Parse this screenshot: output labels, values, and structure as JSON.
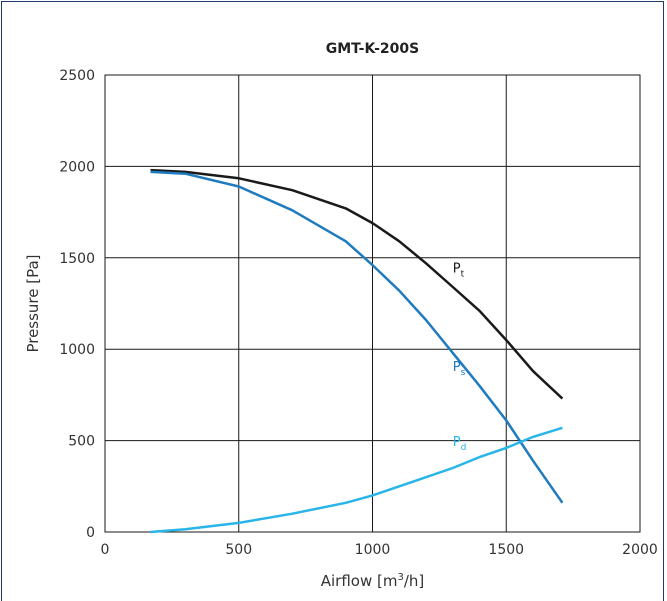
{
  "chart_data": {
    "type": "line",
    "title": "GMT-K-200S",
    "xlabel": "Airflow [m3/h]",
    "xlabel_parts": {
      "main": "Airflow [m",
      "sup": "3",
      "tail": "/h]"
    },
    "ylabel": "Pressure [Pa]",
    "xlim": [
      0,
      2000
    ],
    "ylim": [
      0,
      2500
    ],
    "xticks": [
      0,
      500,
      1000,
      1500,
      2000
    ],
    "yticks": [
      0,
      500,
      1000,
      1500,
      2000,
      2500
    ],
    "xtick_labels": [
      "0",
      "500",
      "1000",
      "1500",
      "2000"
    ],
    "ytick_labels": [
      "0",
      "500",
      "1000",
      "1500",
      "2000",
      "2500"
    ],
    "grid": true,
    "series": [
      {
        "name": "Pt",
        "label_main": "P",
        "label_sub": "t",
        "color": "#1a1a1a",
        "label_at": [
          1300,
          1420
        ],
        "points": [
          [
            170,
            1980
          ],
          [
            300,
            1970
          ],
          [
            500,
            1935
          ],
          [
            700,
            1870
          ],
          [
            900,
            1770
          ],
          [
            1000,
            1690
          ],
          [
            1100,
            1590
          ],
          [
            1200,
            1470
          ],
          [
            1300,
            1340
          ],
          [
            1400,
            1210
          ],
          [
            1500,
            1050
          ],
          [
            1600,
            880
          ],
          [
            1710,
            730
          ]
        ]
      },
      {
        "name": "Ps",
        "label_main": "P",
        "label_sub": "s",
        "color": "#1f7bbf",
        "label_at": [
          1300,
          880
        ],
        "points": [
          [
            170,
            1970
          ],
          [
            300,
            1960
          ],
          [
            500,
            1890
          ],
          [
            700,
            1760
          ],
          [
            900,
            1590
          ],
          [
            1000,
            1460
          ],
          [
            1100,
            1320
          ],
          [
            1200,
            1160
          ],
          [
            1300,
            980
          ],
          [
            1400,
            800
          ],
          [
            1500,
            610
          ],
          [
            1600,
            390
          ],
          [
            1710,
            160
          ]
        ]
      },
      {
        "name": "Pd",
        "label_main": "P",
        "label_sub": "d",
        "color": "#29b5e8",
        "label_at": [
          1300,
          470
        ],
        "points": [
          [
            170,
            0
          ],
          [
            300,
            15
          ],
          [
            500,
            50
          ],
          [
            700,
            100
          ],
          [
            900,
            160
          ],
          [
            1000,
            200
          ],
          [
            1100,
            250
          ],
          [
            1200,
            300
          ],
          [
            1300,
            350
          ],
          [
            1400,
            410
          ],
          [
            1500,
            460
          ],
          [
            1600,
            520
          ],
          [
            1710,
            570
          ]
        ]
      }
    ]
  }
}
